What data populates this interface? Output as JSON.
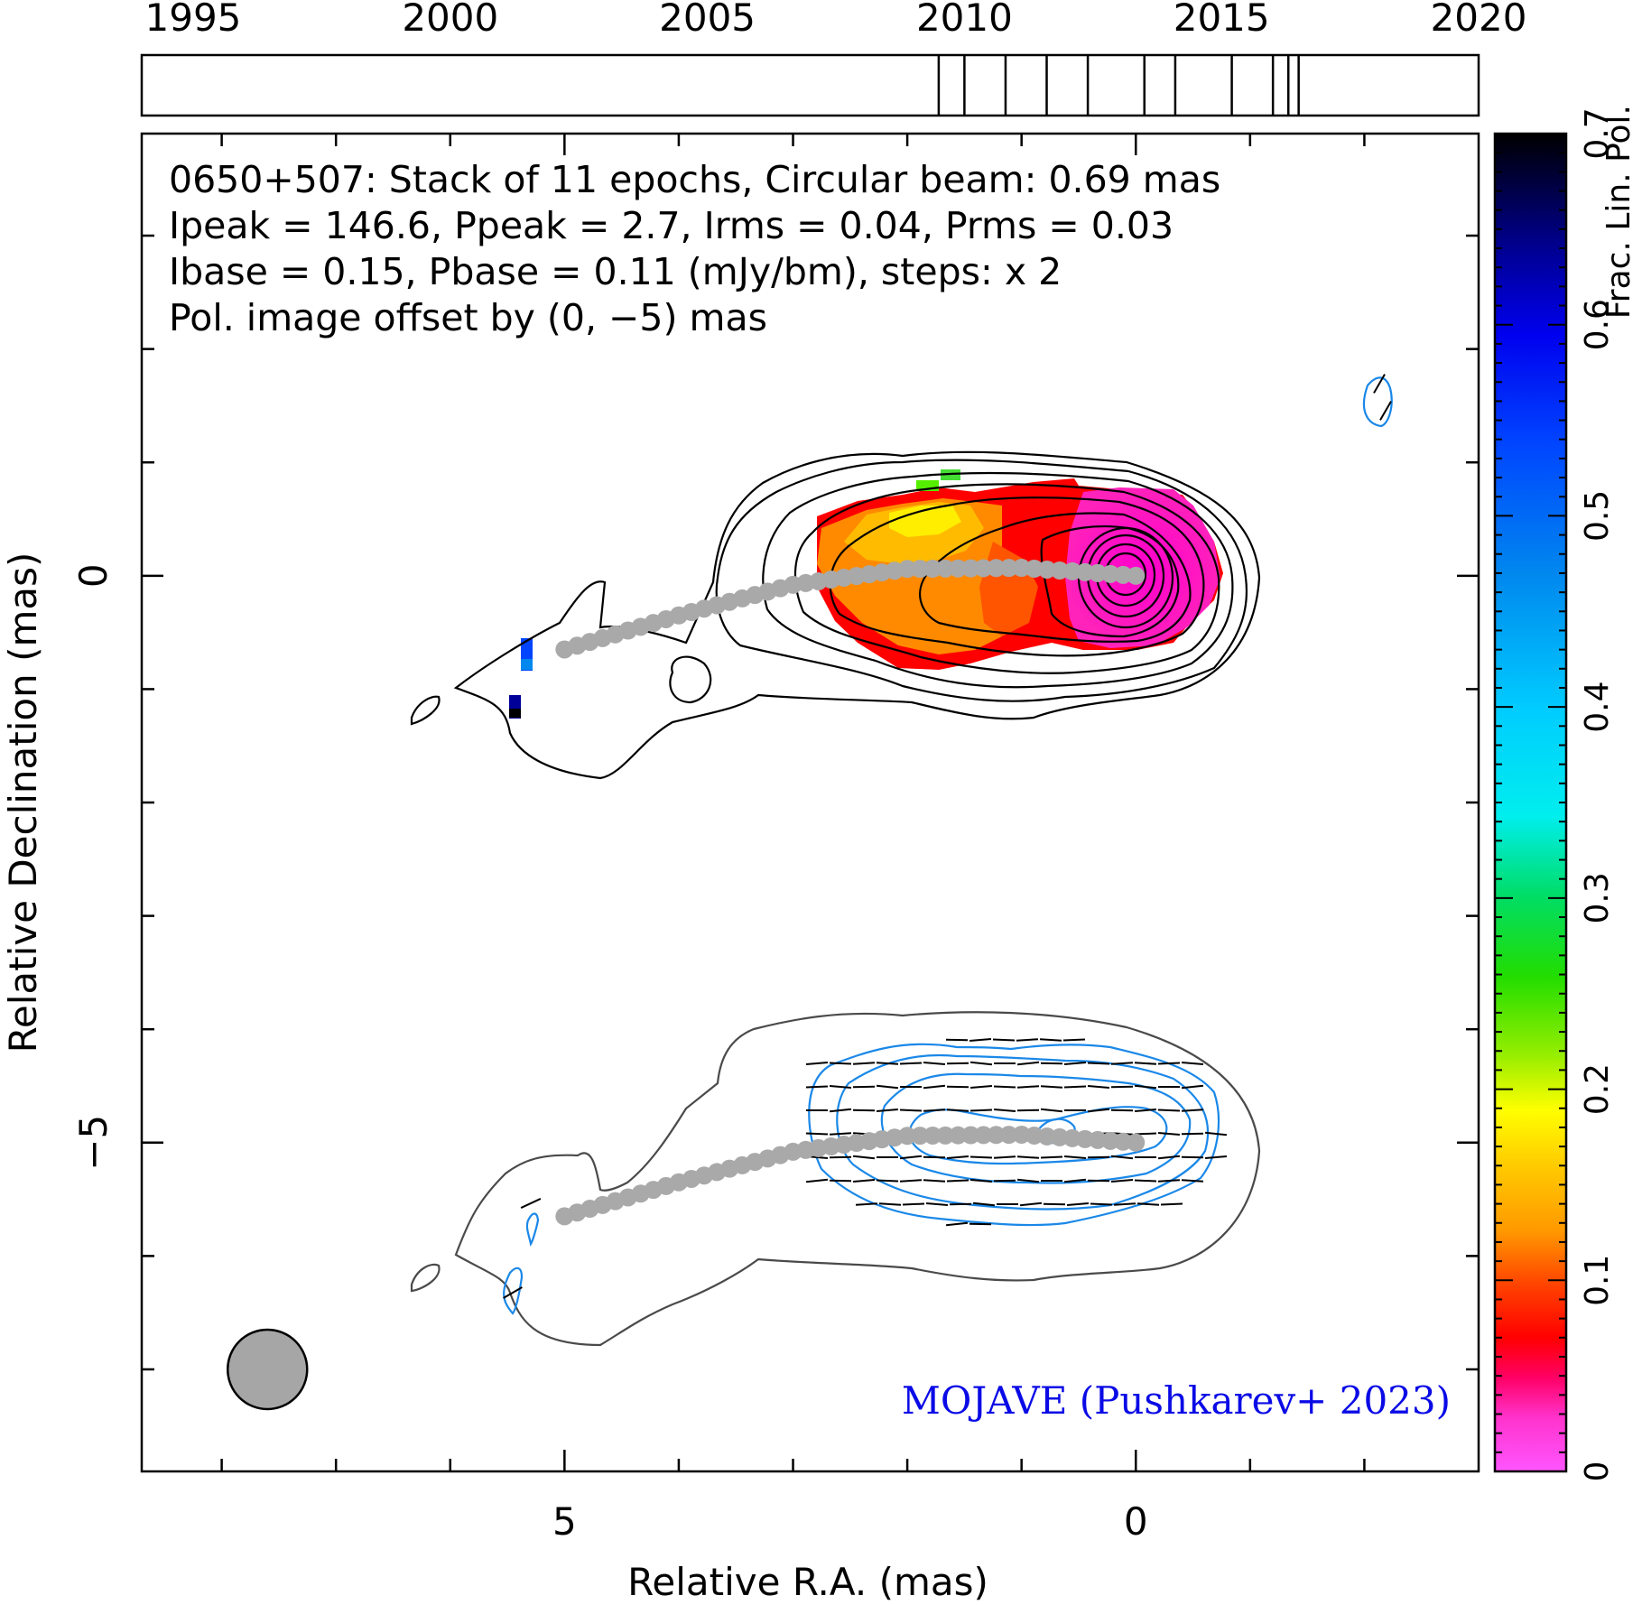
{
  "chart_data": {
    "type": "heatmap",
    "source": "0650+507",
    "info_lines": [
      "0650+507: Stack of 11 epochs, Circular beam: 0.69 mas",
      "Ipeak = 146.6, Ppeak = 2.7, Irms = 0.04, Prms = 0.03",
      "Ibase = 0.15, Pbase = 0.11 (mJy/bm), steps: x 2"
    ],
    "offset_note": "Pol. image offset by (0, −5) mas",
    "offset_color": "#1a88e8",
    "credit": "MOJAVE (Pushkarev+ 2023)",
    "credit_color": "#0a0ae6",
    "xlabel": "Relative R.A. (mas)",
    "ylabel": "Relative Declination (mas)",
    "xlim": [
      8.7,
      -3.0
    ],
    "ylim": [
      -7.9,
      3.9
    ],
    "x_ticks": [
      {
        "value": 5,
        "label": "5"
      },
      {
        "value": 0,
        "label": "0"
      }
    ],
    "y_ticks": [
      {
        "value": 0,
        "label": "0"
      },
      {
        "value": -5,
        "label": "−5"
      }
    ],
    "colorbar": {
      "label": "Frac. Lin. Pol.",
      "range": [
        0,
        0.7
      ],
      "ticks": [
        "0",
        "0.1",
        "0.2",
        "0.3",
        "0.4",
        "0.5",
        "0.6",
        "0.7"
      ]
    },
    "timeline": {
      "range": [
        1994,
        2020
      ],
      "labels": [
        "1995",
        "2000",
        "2005",
        "2010",
        "2015",
        "2020"
      ],
      "epochs": [
        2009.5,
        2010.0,
        2010.8,
        2011.6,
        2012.4,
        2013.5,
        2014.1,
        2015.2,
        2016.0,
        2016.3,
        2016.5
      ]
    },
    "ridge_line": {
      "color": "#a9a9a9",
      "points": [
        [
          0,
          0
        ],
        [
          1,
          0.07
        ],
        [
          2,
          0.06
        ],
        [
          3,
          -0.08
        ],
        [
          4,
          -0.35
        ],
        [
          5,
          -0.65
        ]
      ]
    },
    "beam": {
      "diameter_mas": 0.69,
      "center": [
        7.6,
        -7.0
      ],
      "color": "#a6a6a6"
    },
    "evpa_orientation": "approximately east-west, roughly parallel to the jet"
  }
}
